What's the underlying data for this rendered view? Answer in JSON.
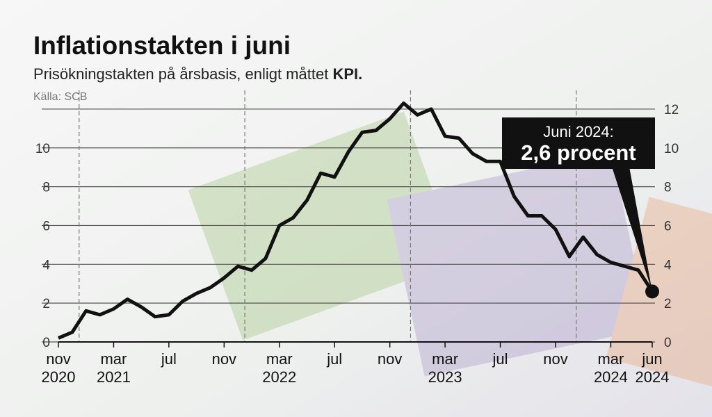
{
  "chart_data": {
    "type": "line",
    "title": "Inflationstakten i juni",
    "subtitle": [
      "Prisökningstakten på årsbasis, enligt måttet ",
      "KPI."
    ],
    "source": "Källa: SCB",
    "annotation": [
      "Juni 2024:",
      "2,6 procent"
    ],
    "categories": [
      "nov 2020",
      null,
      null,
      null,
      "mar 2021",
      null,
      null,
      null,
      "jul",
      null,
      null,
      null,
      "nov",
      null,
      null,
      null,
      "mar 2022",
      null,
      null,
      null,
      "jul",
      null,
      null,
      null,
      "nov",
      null,
      null,
      null,
      "mar 2023",
      null,
      null,
      null,
      "jul",
      null,
      null,
      null,
      "nov",
      null,
      null,
      null,
      "mar 2024",
      null,
      null,
      "jun 2024"
    ],
    "values": [
      0.2,
      0.5,
      1.6,
      1.4,
      1.7,
      2.2,
      1.8,
      1.3,
      1.4,
      2.1,
      2.5,
      2.8,
      3.3,
      3.9,
      3.7,
      4.3,
      6.0,
      6.4,
      7.3,
      8.7,
      8.5,
      9.8,
      10.8,
      10.9,
      11.5,
      12.3,
      11.7,
      12.0,
      10.6,
      10.5,
      9.7,
      9.3,
      9.3,
      7.5,
      6.5,
      6.5,
      5.8,
      4.4,
      5.4,
      4.5,
      4.1,
      3.9,
      3.7,
      2.6
    ],
    "color": "#111111",
    "ylim": [
      0,
      13
    ],
    "yticks": [
      0,
      2,
      4,
      6,
      8,
      10
    ],
    "y2lim": [
      0,
      13
    ],
    "y2ticks": [
      0,
      2,
      4,
      6,
      8,
      10,
      12
    ],
    "grid": true
  }
}
